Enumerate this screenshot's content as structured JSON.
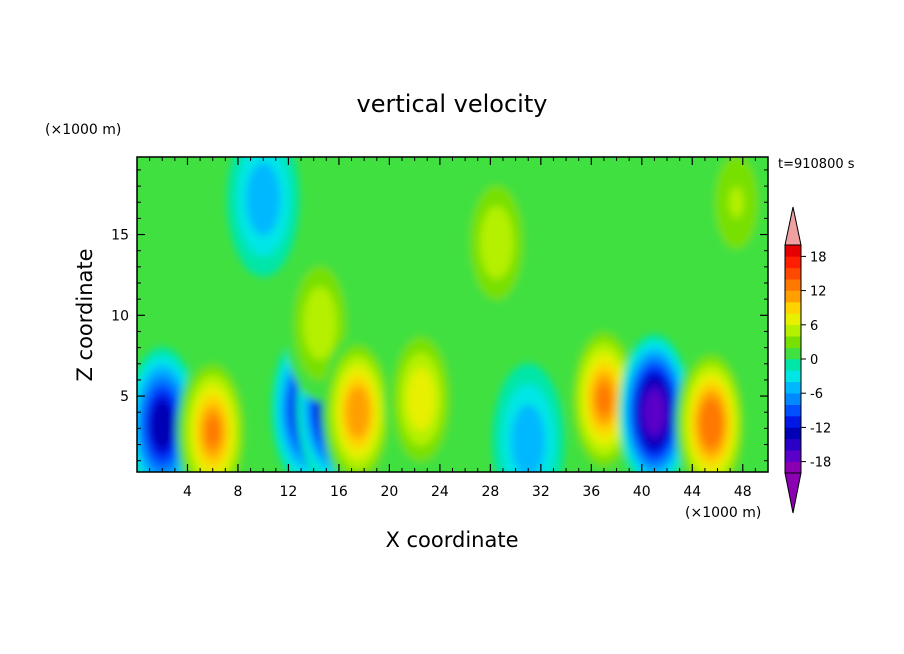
{
  "chart_data": {
    "type": "heatmap",
    "title": "vertical velocity",
    "time_label": "t=910800 s",
    "xlabel": "X coordinate",
    "ylabel": "Z coordinate",
    "x_unit": "(×1000 m)",
    "y_unit": "(×1000 m)",
    "xlim": [
      0,
      50
    ],
    "ylim": [
      0.3,
      19.8
    ],
    "x_ticks": [
      4,
      8,
      12,
      16,
      20,
      24,
      28,
      32,
      36,
      40,
      44,
      48
    ],
    "y_ticks": [
      5,
      10,
      15
    ],
    "colorbar": {
      "levels": [
        -20,
        -18,
        -16,
        -14,
        -12,
        -10,
        -8,
        -6,
        -4,
        -2,
        0,
        2,
        4,
        6,
        8,
        10,
        12,
        14,
        16,
        18,
        20
      ],
      "tick_labels": [
        18,
        12,
        6,
        0,
        -6,
        -12,
        -18
      ],
      "colors": [
        "#8a00b0",
        "#5a00c8",
        "#2a00c8",
        "#0000b4",
        "#0018e6",
        "#0050ff",
        "#0088ff",
        "#00b8ff",
        "#00e6e6",
        "#00e6a8",
        "#40e040",
        "#78e000",
        "#b4f000",
        "#e6f000",
        "#ffd200",
        "#ffa000",
        "#ff7800",
        "#ff4800",
        "#ff1e00",
        "#e60000"
      ],
      "over_color": "#f0a0a0",
      "under_color": "#8c00b4"
    },
    "cells": [
      {
        "x": 2,
        "z": 3.2,
        "w": -14
      },
      {
        "x": 6,
        "z": 2.8,
        "w": 12
      },
      {
        "x": 10,
        "z": 17.2,
        "w": -5
      },
      {
        "x": 13.5,
        "z": 4.2,
        "w": -14
      },
      {
        "x": 15.5,
        "z": 4.3,
        "w": -16
      },
      {
        "x": 14.5,
        "z": 9.5,
        "w": 5
      },
      {
        "x": 17.5,
        "z": 4,
        "w": 11
      },
      {
        "x": 22.5,
        "z": 4.8,
        "w": 7
      },
      {
        "x": 28.5,
        "z": 14.5,
        "w": 5
      },
      {
        "x": 31,
        "z": 2.2,
        "w": -6
      },
      {
        "x": 37,
        "z": 4.8,
        "w": 12
      },
      {
        "x": 41,
        "z": 4,
        "w": -17
      },
      {
        "x": 45.5,
        "z": 3.3,
        "w": 13
      },
      {
        "x": 47.5,
        "z": 17,
        "w": 4
      }
    ]
  }
}
